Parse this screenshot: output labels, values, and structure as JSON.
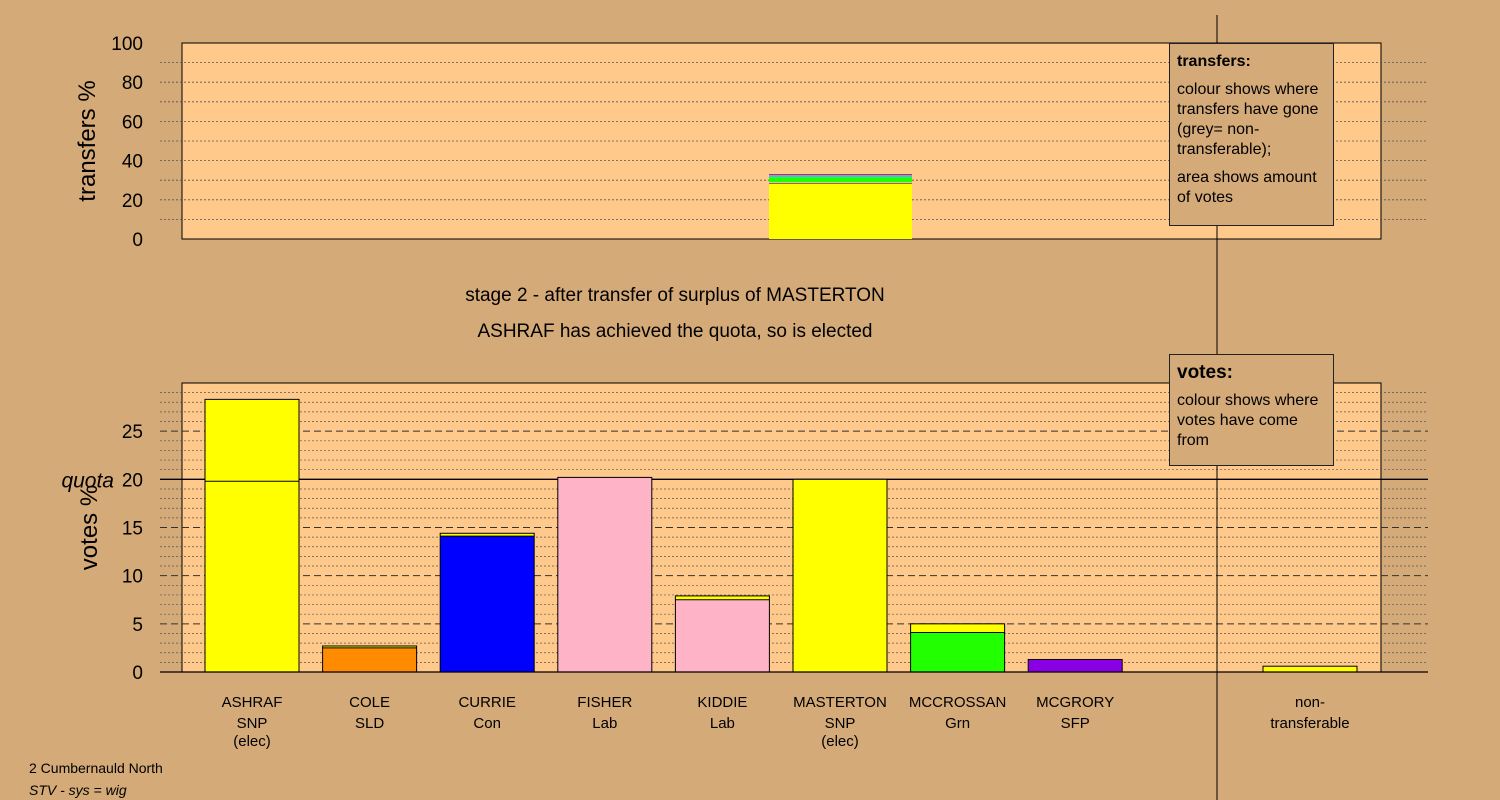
{
  "stage": {
    "heading": "stage 2 - after transfer of surplus of MASTERTON",
    "subheading": "ASHRAF has achieved the quota, so is elected"
  },
  "legends": {
    "transfers": {
      "title": "transfers:",
      "line1": "colour shows where transfers have gone (grey= non-transferable);",
      "line2": "area shows amount of votes"
    },
    "votes": {
      "title": "votes:",
      "line1": "colour shows where votes have come from"
    }
  },
  "footer": {
    "ward": "2 Cumbernauld North",
    "system": "STV - sys = wig"
  },
  "colors": {
    "background": "#d4aa78",
    "plot_bg": "#fec98b",
    "SNP": "#ffff00",
    "SLD": "#ff8c00",
    "Con": "#0000ff",
    "Lab": "#ffb3c6",
    "Grn": "#22ff00",
    "SFP": "#8a00e6",
    "transfer_cyan": "#33cccc",
    "transfer_purple": "#8a00e6"
  },
  "chart_data": [
    {
      "type": "bar",
      "id": "transfers",
      "ylabel": "transfers %",
      "ylim": [
        0,
        100
      ],
      "yticks": [
        0,
        20,
        40,
        60,
        80,
        100
      ],
      "grid": true,
      "transfer_from": "MASTERTON",
      "segments": [
        {
          "to": "ASHRAF",
          "party": "SNP",
          "value": 28.5
        },
        {
          "to": "KIDDIE",
          "party": "Lab",
          "value": 0.5
        },
        {
          "to": "MCCROSSAN",
          "party": "Grn",
          "value": 2.5
        },
        {
          "to": "non-transferable",
          "party": "Other",
          "value": 1.0
        },
        {
          "to": "COLE",
          "party": "SLD",
          "value": 0.3
        },
        {
          "to": "CURRIE",
          "party": "Con",
          "value": 0.3
        }
      ]
    },
    {
      "type": "bar",
      "id": "votes",
      "ylabel": "votes %",
      "ylim": [
        0,
        30
      ],
      "yticks": [
        0,
        5,
        10,
        15,
        20,
        25
      ],
      "quota": 20,
      "quota_label": "quota",
      "grid": true,
      "candidates": [
        {
          "name": "ASHRAF",
          "party": "SNP",
          "note": "(elec)",
          "base": 19.8,
          "received": 8.5,
          "total": 28.3
        },
        {
          "name": "COLE",
          "party": "SLD",
          "note": "",
          "base": 2.5,
          "received": 0.2,
          "total": 2.7
        },
        {
          "name": "CURRIE",
          "party": "Con",
          "note": "",
          "base": 14.1,
          "received": 0.3,
          "total": 14.4
        },
        {
          "name": "FISHER",
          "party": "Lab",
          "note": "",
          "base": 20.2,
          "received": 0,
          "total": 20.2
        },
        {
          "name": "KIDDIE",
          "party": "Lab",
          "note": "",
          "base": 7.5,
          "received": 0.4,
          "total": 7.9
        },
        {
          "name": "MASTERTON",
          "party": "SNP",
          "note": "(elec)",
          "base": 20.0,
          "received": 0,
          "total": 20.0
        },
        {
          "name": "MCCROSSAN",
          "party": "Grn",
          "note": "",
          "base": 4.1,
          "received": 0.9,
          "total": 5.0
        },
        {
          "name": "MCGRORY",
          "party": "SFP",
          "note": "",
          "base": 1.3,
          "received": 0,
          "total": 1.3
        }
      ],
      "nontransferable": {
        "line1": "non-",
        "line2": "transferable",
        "value": 0.6
      }
    }
  ]
}
